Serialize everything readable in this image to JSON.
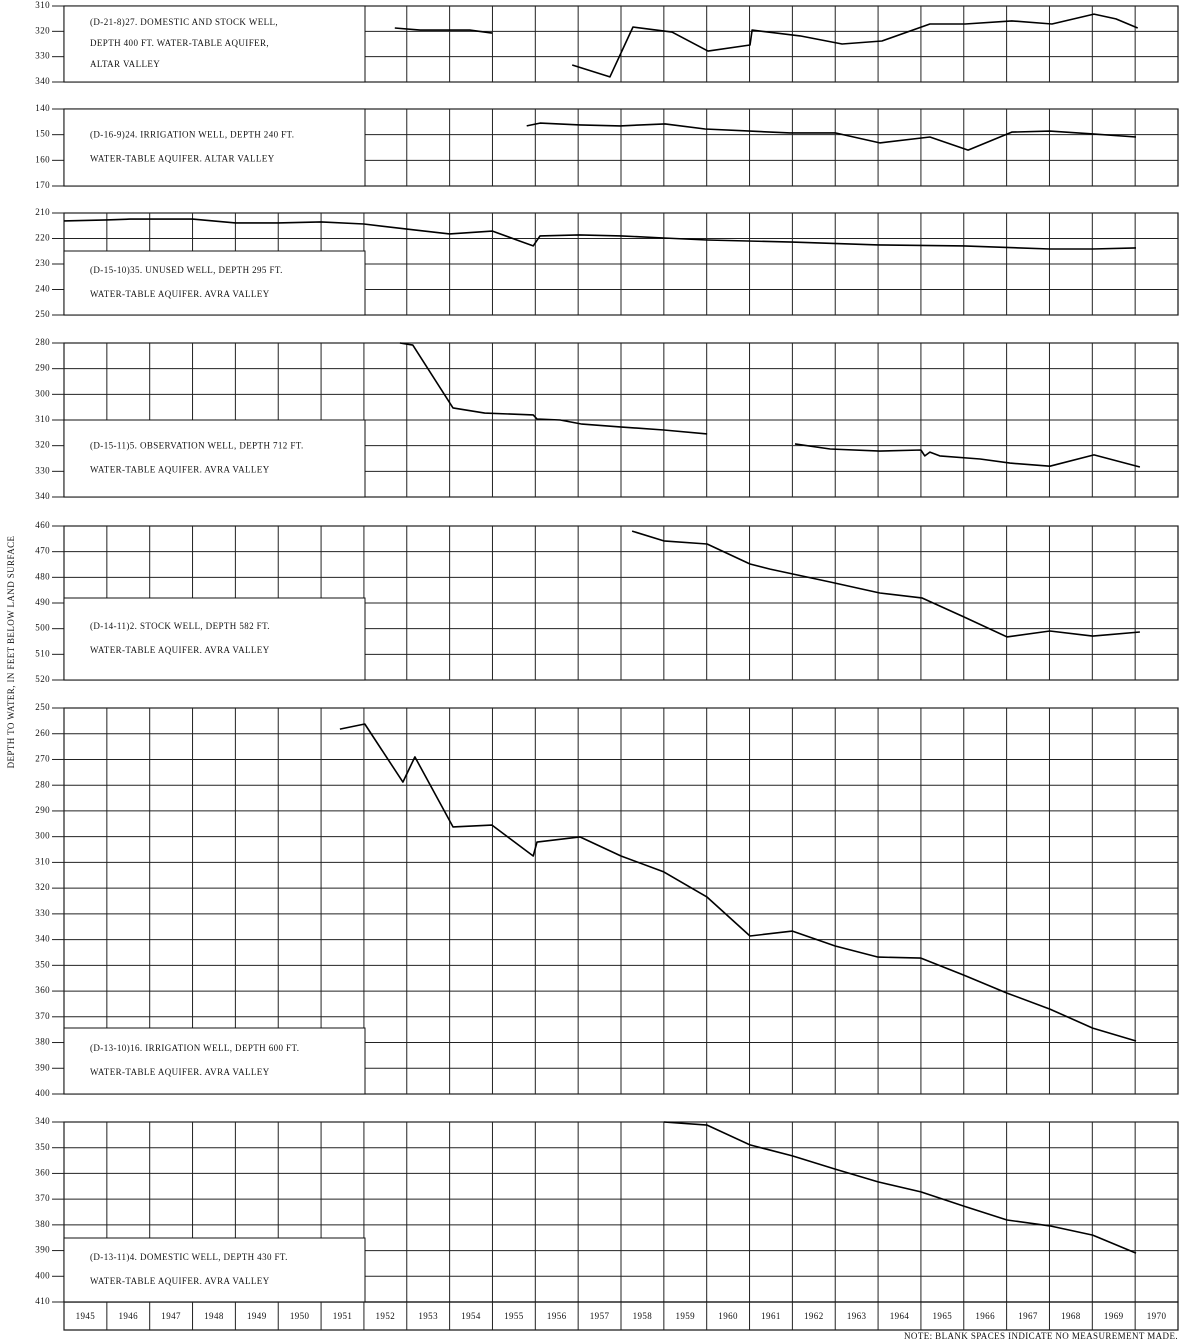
{
  "ylabel": "DEPTH TO WATER, IN FEET BELOW LAND SURFACE",
  "note": "NOTE: BLANK SPACES INDICATE NO MEASUREMENT MADE.",
  "chart_data": [
    {
      "type": "line",
      "title": [
        "(D-21-8)27. DOMESTIC AND STOCK WELL,",
        "DEPTH 400 FT. WATER-TABLE AQUIFER,",
        "ALTAR VALLEY"
      ],
      "invert_y": true,
      "grid": true,
      "color": "#000000",
      "xlim": [
        1945,
        1971
      ],
      "ylim": [
        310,
        340
      ],
      "yticks": [
        310,
        320,
        330,
        340
      ],
      "x": [
        1952.72,
        1953.31,
        1954.47,
        1954.99,
        null,
        1956.86,
        1957.74,
        1958.28,
        1959.19,
        1960.03,
        1961.01,
        1961.06,
        1962.18,
        1963.16,
        1964.09,
        1965.21,
        1966.03,
        1967.12,
        1968.06,
        1969.04,
        1969.55,
        1970.06
      ],
      "values": [
        318.7,
        319.5,
        319.5,
        320.7,
        null,
        333.3,
        338,
        318.3,
        320.3,
        327.8,
        325.4,
        319.5,
        321.8,
        325,
        323.8,
        317.1,
        317.1,
        315.9,
        317.1,
        313.2,
        315.1,
        318.7
      ]
    },
    {
      "type": "line",
      "title": [
        "(D-16-9)24. IRRIGATION WELL, DEPTH 240 FT.",
        "WATER-TABLE AQUIFER. ALTAR VALLEY"
      ],
      "invert_y": true,
      "grid": true,
      "color": "#000000",
      "xlim": [
        1945,
        1971
      ],
      "ylim": [
        140,
        170
      ],
      "yticks": [
        140,
        150,
        160,
        170
      ],
      "x": [
        1955.8,
        1956.11,
        1957.04,
        1957.98,
        1959.03,
        1959.96,
        1961.01,
        1961.94,
        1963.0,
        1964.04,
        1965.21,
        1966.1,
        1967.12,
        1968.01,
        1969.01,
        1970.02
      ],
      "values": [
        146.6,
        145.5,
        146.2,
        146.6,
        145.8,
        147.8,
        148.6,
        149.3,
        149.3,
        153.2,
        150.9,
        156,
        149,
        148.6,
        149.7,
        150.9
      ]
    },
    {
      "type": "line",
      "title": [
        "(D-15-10)35. UNUSED WELL, DEPTH 295 FT.",
        "WATER-TABLE AQUIFER. AVRA VALLEY"
      ],
      "invert_y": true,
      "grid": true,
      "color": "#000000",
      "xlim": [
        1945,
        1971
      ],
      "ylim": [
        210,
        250
      ],
      "yticks": [
        210,
        220,
        230,
        240,
        250
      ],
      "x": [
        1945,
        1946,
        1946.54,
        1947,
        1948,
        1949,
        1950,
        1951,
        1952,
        1953,
        1954,
        1955,
        1955.64,
        1955.95,
        1956.11,
        1957.02,
        1958,
        1959,
        1960.01,
        1962,
        1964,
        1966,
        1968.01,
        1969,
        1970.02
      ],
      "values": [
        213.1,
        212.7,
        212.4,
        212.4,
        212.4,
        213.9,
        213.9,
        213.5,
        214.3,
        216.3,
        218.2,
        217.1,
        221,
        222.9,
        219,
        218.6,
        219,
        219.8,
        220.6,
        221.4,
        222.5,
        222.9,
        224.1,
        224.1,
        223.7
      ]
    },
    {
      "type": "line",
      "title": [
        "(D-15-11)5. OBSERVATION WELL, DEPTH 712 FT.",
        "WATER-TABLE AQUIFER. AVRA VALLEY"
      ],
      "invert_y": true,
      "grid": true,
      "color": "#000000",
      "xlim": [
        1945,
        1971
      ],
      "ylim": [
        280,
        340
      ],
      "yticks": [
        280,
        290,
        300,
        310,
        320,
        330,
        340
      ],
      "x": [
        1952.84,
        1953.14,
        1954.08,
        1954.82,
        1955.95,
        1956.04,
        1956.58,
        1957.09,
        1957.98,
        1959.0,
        1960.01,
        null,
        1962.06,
        1962.88,
        1964.04,
        1965.0,
        1965.09,
        1965.21,
        1965.44,
        1966.38,
        1967.08,
        1968.01,
        1969.04,
        1970.11
      ],
      "values": [
        280,
        280.8,
        305.3,
        307.3,
        308,
        309.6,
        310,
        311.6,
        312.7,
        313.9,
        315.4,
        null,
        319.3,
        321.3,
        322.1,
        321.7,
        324,
        322.5,
        324,
        325.2,
        326.8,
        328,
        323.6,
        328.3
      ]
    },
    {
      "type": "line",
      "title": [
        "(D-14-11)2. STOCK WELL, DEPTH 582 FT.",
        "WATER-TABLE AQUIFER. AVRA VALLEY"
      ],
      "invert_y": true,
      "grid": true,
      "color": "#000000",
      "xlim": [
        1945,
        1971
      ],
      "ylim": [
        460,
        520
      ],
      "yticks": [
        460,
        470,
        480,
        490,
        500,
        510,
        520
      ],
      "x": [
        1958.26,
        1959.0,
        1960.01,
        1961.01,
        1961.48,
        1962.88,
        1964.04,
        1965.02,
        1966.0,
        1967.01,
        1968.01,
        1969.01,
        1970.11
      ],
      "values": [
        462,
        465.8,
        467,
        474.8,
        476.8,
        481.8,
        486.1,
        488,
        495.4,
        503.2,
        500.9,
        502.9,
        501.3
      ]
    },
    {
      "type": "line",
      "title": [
        "(D-13-10)16. IRRIGATION WELL, DEPTH 600 FT.",
        "WATER-TABLE AQUIFER. AVRA VALLEY"
      ],
      "invert_y": true,
      "grid": true,
      "color": "#000000",
      "xlim": [
        1945,
        1971
      ],
      "ylim": [
        250,
        400
      ],
      "yticks": [
        250,
        260,
        270,
        280,
        290,
        300,
        310,
        320,
        330,
        340,
        350,
        360,
        370,
        380,
        390,
        400
      ],
      "x": [
        1951.44,
        1952.02,
        1952.91,
        1953.19,
        1954.08,
        1954.99,
        1955.95,
        1956.04,
        1957.04,
        1958.0,
        1959.0,
        1960.01,
        1961.01,
        1962.0,
        1963.0,
        1964.0,
        1965.0,
        1966.0,
        1967.01,
        1968.01,
        1969.01,
        1970.02
      ],
      "values": [
        258.2,
        256.2,
        278.8,
        269,
        296.2,
        295.5,
        307.5,
        302.1,
        300.1,
        307.5,
        313.7,
        323.5,
        338.6,
        336.7,
        342.5,
        346.8,
        347.2,
        353.8,
        360.8,
        367,
        374.4,
        379.4
      ]
    },
    {
      "type": "line",
      "title": [
        "(D-13-11)4. DOMESTIC WELL, DEPTH 430 FT.",
        "WATER-TABLE AQUIFER. AVRA VALLEY"
      ],
      "invert_y": true,
      "grid": true,
      "color": "#000000",
      "xlim": [
        1945,
        1971
      ],
      "ylim": [
        340,
        410
      ],
      "yticks": [
        340,
        350,
        360,
        370,
        380,
        390,
        400,
        410
      ],
      "xticks": [
        1945,
        1946,
        1947,
        1948,
        1949,
        1950,
        1951,
        1952,
        1953,
        1954,
        1955,
        1956,
        1957,
        1958,
        1959,
        1960,
        1961,
        1962,
        1963,
        1964,
        1965,
        1966,
        1967,
        1968,
        1969,
        1970
      ],
      "x": [
        1959,
        1960.01,
        1961.01,
        1962,
        1963,
        1964,
        1965,
        1966,
        1967.01,
        1968.01,
        1969.01,
        1970.02
      ],
      "values": [
        340,
        341.2,
        348.9,
        353.2,
        358.3,
        363.3,
        367.2,
        372.7,
        378.1,
        380.4,
        384,
        391
      ]
    }
  ]
}
